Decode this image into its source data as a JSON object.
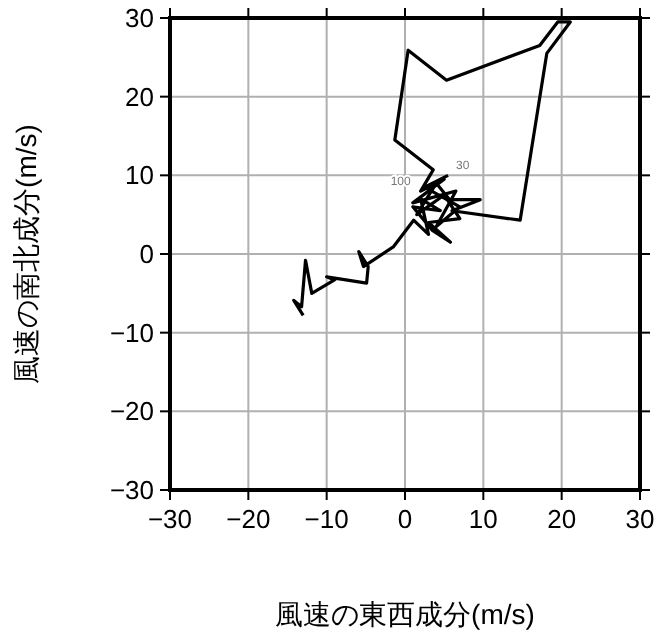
{
  "chart_data": {
    "type": "line",
    "xlabel": "風速の東西成分(m/s)",
    "ylabel": "風速の南北成分(m/s)",
    "xlim": [
      -30,
      30
    ],
    "ylim": [
      -30,
      30
    ],
    "xticks": [
      {
        "value": -30,
        "label": "−30"
      },
      {
        "value": -20,
        "label": "−20"
      },
      {
        "value": -10,
        "label": "−10"
      },
      0,
      10,
      20,
      30
    ],
    "yticks": [
      {
        "value": -30,
        "label": "−30"
      },
      {
        "value": -20,
        "label": "−20"
      },
      {
        "value": -10,
        "label": "−10"
      },
      0,
      10,
      20,
      30
    ],
    "grid": true,
    "marker": "none",
    "line_style": "solid",
    "annotations": [
      {
        "text": "100",
        "x": 2.0,
        "y": 8.0
      },
      {
        "text": "30",
        "x": 5.5,
        "y": 10.0
      }
    ],
    "series": [
      {
        "color": "#000000",
        "x": [
          -13.0,
          -14.2,
          -13.2,
          -12.7,
          -11.9,
          -9.0,
          -10.0,
          -4.9,
          -4.7,
          -5.9,
          -5.3,
          -1.5,
          1.1,
          3.0,
          2.0,
          4.5,
          1.0,
          3.5,
          5.8,
          3.0,
          7.0,
          5.0,
          1.5,
          4.0,
          5.7,
          9.6,
          6.0,
          14.7,
          18.1,
          21.1,
          19.5,
          17.2,
          5.3,
          0.4,
          -1.3,
          3.6,
          2.0,
          5.0,
          1.0,
          6.5,
          4.0,
          7.0,
          2.5,
          5.5
        ],
        "values": [
          -7.8,
          -5.9,
          -6.7,
          -0.8,
          -5.0,
          -3.3,
          -2.9,
          -3.7,
          -1.6,
          0.3,
          -1.6,
          0.9,
          4.3,
          2.5,
          7.0,
          5.5,
          6.0,
          3.0,
          1.5,
          4.0,
          4.5,
          7.5,
          5.0,
          9.0,
          6.9,
          6.9,
          5.5,
          4.3,
          25.5,
          29.5,
          29.5,
          26.5,
          22.1,
          25.9,
          14.5,
          10.7,
          8.0,
          9.5,
          6.5,
          8.0,
          3.5,
          6.0,
          8.5,
          10.0
        ]
      }
    ]
  }
}
